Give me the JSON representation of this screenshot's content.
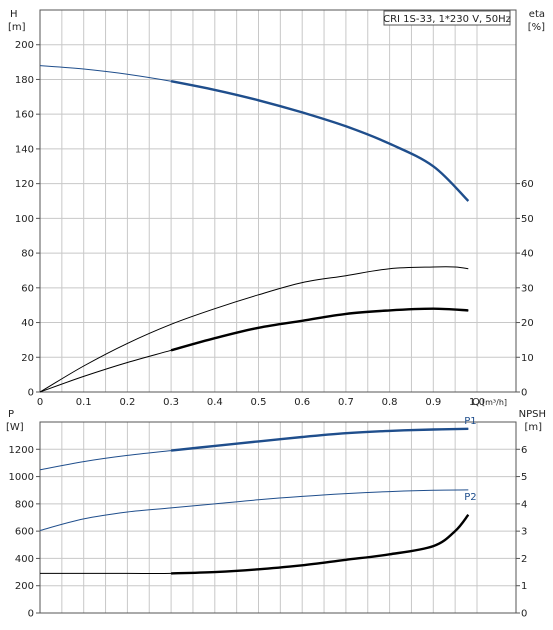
{
  "title": "CRI 1S-33, 1*230 V, 50Hz",
  "colors": {
    "blue": "#1f4e8c",
    "black": "#000000",
    "grid": "#c8c8c8"
  },
  "chart_data": [
    {
      "type": "line",
      "name": "top",
      "x_label": "Q",
      "x_unit": "[m³/h]",
      "xlim": [
        0,
        1.0
      ],
      "x_ticks": [
        0,
        0.1,
        0.2,
        0.3,
        0.4,
        0.5,
        0.6,
        0.7,
        0.8,
        0.9,
        1.0
      ],
      "x_tick_labels": [
        "0",
        "0.1",
        "0.2",
        "0.3",
        "0.4",
        "0.5",
        "0.6",
        "0.7",
        "0.8",
        "0.9",
        "1.0"
      ],
      "left_axis": {
        "label": "H",
        "unit": "[m]",
        "ylim": [
          0,
          220
        ],
        "ticks": [
          0,
          20,
          40,
          60,
          80,
          100,
          120,
          140,
          160,
          180,
          200
        ]
      },
      "right_axis": {
        "label": "eta",
        "unit": "[%]",
        "ylim": [
          0,
          110
        ],
        "ticks": [
          0,
          10,
          20,
          30,
          40,
          50,
          60
        ]
      },
      "grid": true,
      "series": [
        {
          "axis": "left",
          "color": "blue",
          "thin_until": 0.3,
          "x": [
            0,
            0.1,
            0.2,
            0.3,
            0.4,
            0.5,
            0.6,
            0.7,
            0.8,
            0.9,
            0.98
          ],
          "y": [
            188,
            186,
            183,
            179,
            174,
            168,
            161,
            153,
            143,
            130,
            110
          ]
        },
        {
          "axis": "left",
          "color": "black",
          "thin_until": 1.0,
          "x": [
            0,
            0.1,
            0.2,
            0.3,
            0.4,
            0.5,
            0.6,
            0.7,
            0.8,
            0.9,
            0.95,
            0.98
          ],
          "y": [
            0,
            15,
            28,
            39,
            48,
            56,
            63,
            67,
            71,
            72,
            72,
            71
          ]
        },
        {
          "axis": "left",
          "color": "black",
          "thin_until": 0.3,
          "x": [
            0,
            0.1,
            0.2,
            0.3,
            0.4,
            0.5,
            0.6,
            0.7,
            0.8,
            0.9,
            0.98
          ],
          "y": [
            0,
            9,
            17,
            24,
            31,
            37,
            41,
            45,
            47,
            48,
            47
          ]
        }
      ]
    },
    {
      "type": "line",
      "name": "bottom",
      "xlim": [
        0,
        1.0
      ],
      "left_axis": {
        "label": "P",
        "unit": "[W]",
        "ylim": [
          0,
          1400
        ],
        "ticks": [
          0,
          200,
          400,
          600,
          800,
          1000,
          1200
        ]
      },
      "right_axis": {
        "label": "NPSH",
        "unit": "[m]",
        "ylim": [
          0,
          7
        ],
        "ticks": [
          0,
          1,
          2,
          3,
          4,
          5,
          6
        ]
      },
      "grid": true,
      "series": [
        {
          "name": "P1",
          "axis": "left",
          "color": "blue",
          "thin_until": 0.3,
          "x": [
            0,
            0.1,
            0.2,
            0.3,
            0.4,
            0.5,
            0.6,
            0.7,
            0.8,
            0.9,
            0.98
          ],
          "y": [
            1050,
            1110,
            1155,
            1190,
            1225,
            1258,
            1290,
            1318,
            1335,
            1345,
            1350
          ]
        },
        {
          "name": "P2",
          "axis": "left",
          "color": "blue",
          "thin_until": 1.0,
          "x": [
            0,
            0.1,
            0.2,
            0.3,
            0.4,
            0.5,
            0.6,
            0.7,
            0.8,
            0.9,
            0.98
          ],
          "y": [
            605,
            690,
            740,
            770,
            800,
            830,
            855,
            875,
            890,
            900,
            902
          ]
        },
        {
          "axis": "right",
          "color": "black",
          "thin_until": 0.3,
          "x": [
            0,
            0.1,
            0.2,
            0.3,
            0.4,
            0.5,
            0.6,
            0.7,
            0.8,
            0.9,
            0.95,
            0.98
          ],
          "y": [
            1.45,
            1.45,
            1.45,
            1.45,
            1.5,
            1.6,
            1.75,
            1.95,
            2.15,
            2.45,
            3.0,
            3.6
          ]
        }
      ]
    }
  ]
}
